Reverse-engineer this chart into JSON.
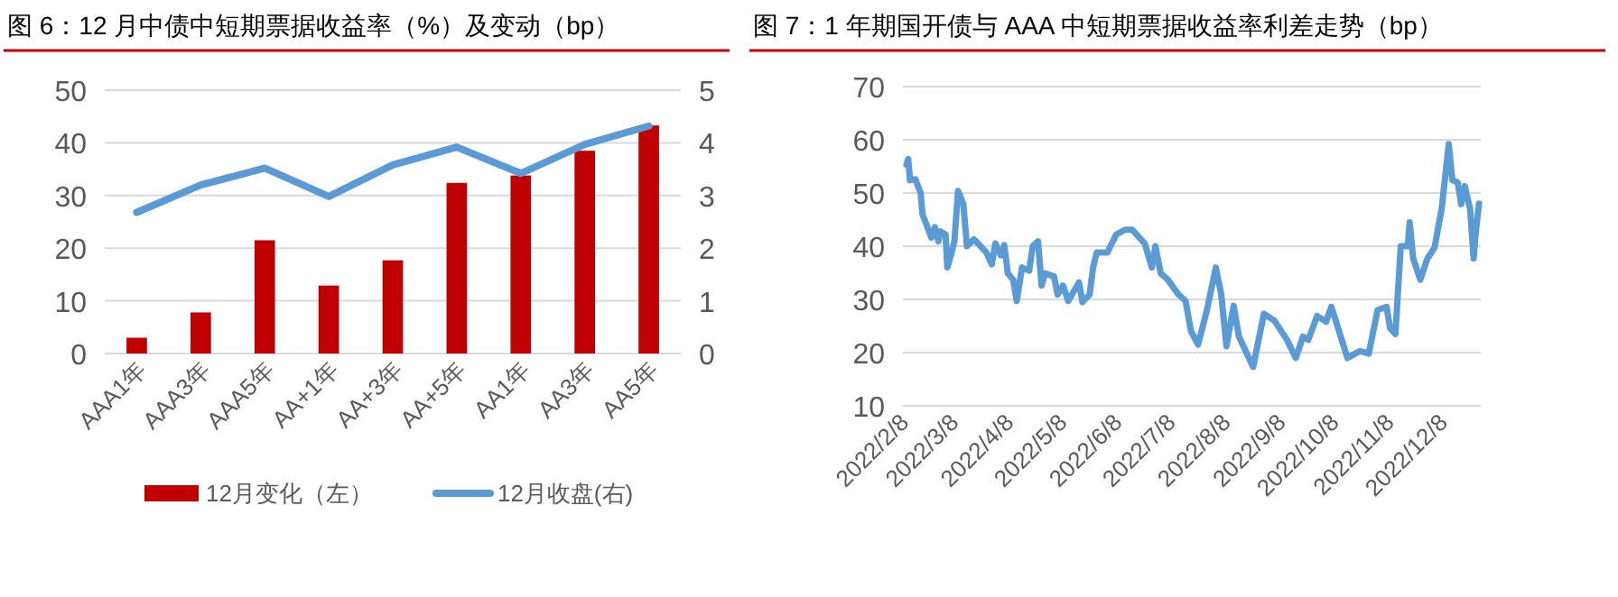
{
  "chart_data": [
    {
      "type": "bar",
      "title": "图 6：12 月中债中短期票据收益率（%）及变动（bp）",
      "categories": [
        "AAA1年",
        "AAA3年",
        "AAA5年",
        "AA+1年",
        "AA+3年",
        "AA+5年",
        "AA1年",
        "AA3年",
        "AA5年"
      ],
      "series": [
        {
          "name": "12月变化（左）",
          "color": "#c00000",
          "values": [
            3,
            7.8,
            21.5,
            12.9,
            17.7,
            32.4,
            33.8,
            38.5,
            43.3
          ]
        },
        {
          "name": "12月收盘(右)",
          "type": "line",
          "axis": "y2",
          "color": "#5b9bd5",
          "values": [
            2.68,
            3.2,
            3.52,
            2.98,
            3.58,
            3.92,
            3.42,
            3.97,
            4.32
          ]
        }
      ],
      "ylim": [
        0,
        50
      ],
      "yticks": [
        0,
        10,
        20,
        30,
        40,
        50
      ],
      "y2lim": [
        0,
        5
      ],
      "y2ticks": [
        0,
        1,
        2,
        3,
        4,
        5
      ],
      "grid": "y",
      "legend": "bottom"
    },
    {
      "type": "line",
      "title": "图 7：1 年期国开债与 AAA 中短期票据收益率利差走势（bp）",
      "x": [
        "2022-02-10",
        "2022-02-11",
        "2022-02-12",
        "2022-02-15",
        "2022-02-18",
        "2022-02-19",
        "2022-02-22",
        "2022-02-24",
        "2022-02-26",
        "2022-02-28",
        "2022-03-01",
        "2022-03-04",
        "2022-03-05",
        "2022-03-07",
        "2022-03-09",
        "2022-03-11",
        "2022-03-14",
        "2022-03-16",
        "2022-03-20",
        "2022-03-27",
        "2022-03-30",
        "2022-04-01",
        "2022-04-04",
        "2022-04-06",
        "2022-04-08",
        "2022-04-11",
        "2022-04-13",
        "2022-04-16",
        "2022-04-20",
        "2022-04-22",
        "2022-04-25",
        "2022-04-27",
        "2022-04-29",
        "2022-05-04",
        "2022-05-06",
        "2022-05-09",
        "2022-05-12",
        "2022-05-18",
        "2022-05-20",
        "2022-05-24",
        "2022-05-26",
        "2022-05-28",
        "2022-06-03",
        "2022-06-08",
        "2022-06-13",
        "2022-06-17",
        "2022-06-24",
        "2022-06-28",
        "2022-06-30",
        "2022-07-03",
        "2022-07-07",
        "2022-07-13",
        "2022-07-17",
        "2022-07-20",
        "2022-07-24",
        "2022-07-29",
        "2022-08-03",
        "2022-08-06",
        "2022-08-09",
        "2022-08-13",
        "2022-08-16",
        "2022-08-24",
        "2022-08-30",
        "2022-09-05",
        "2022-09-12",
        "2022-09-17",
        "2022-09-21",
        "2022-09-24",
        "2022-09-29",
        "2022-10-04",
        "2022-10-07",
        "2022-10-16",
        "2022-10-23",
        "2022-10-28",
        "2022-11-02",
        "2022-11-07",
        "2022-11-09",
        "2022-11-12",
        "2022-11-15",
        "2022-11-19",
        "2022-11-20",
        "2022-11-22",
        "2022-11-26",
        "2022-11-30",
        "2022-12-04",
        "2022-12-06",
        "2022-12-08",
        "2022-12-12",
        "2022-12-14",
        "2022-12-17",
        "2022-12-19",
        "2022-12-21",
        "2022-12-24",
        "2022-12-26",
        "2022-12-27",
        "2022-12-29"
      ],
      "series": [
        {
          "color": "#5b9bd5",
          "values": [
            55.3,
            56.4,
            52.4,
            52.6,
            50,
            46,
            43.4,
            41.6,
            43.6,
            40.9,
            42.8,
            42.2,
            36,
            38.3,
            41,
            50.4,
            47.9,
            40,
            41.3,
            38.8,
            36.6,
            40.5,
            38.3,
            40.2,
            34.9,
            33.7,
            29.7,
            36,
            35.4,
            40,
            40.9,
            32.6,
            34.9,
            34.3,
            30.9,
            32.6,
            29.7,
            33.2,
            29.5,
            30.9,
            36,
            38.8,
            38.8,
            42.2,
            43.1,
            43.1,
            40.5,
            36,
            40,
            34.9,
            33.7,
            30.9,
            29.7,
            24.1,
            21.5,
            28,
            36,
            31,
            21.2,
            28.8,
            23,
            17.3,
            27.3,
            26,
            22.4,
            19,
            23,
            22.4,
            26.9,
            25.8,
            28.6,
            19,
            20.3,
            19.8,
            28,
            28.6,
            24.6,
            23.5,
            40,
            40,
            44.5,
            37.7,
            33.7,
            37.7,
            39.7,
            43.4,
            47,
            59.2,
            52.4,
            52,
            47.9,
            51.3,
            47,
            37.7,
            42,
            48
          ]
        }
      ],
      "xlim": [
        "2022-02-08",
        "2022-12-30"
      ],
      "xticks": [
        {
          "value": "2022-02-08",
          "label": "2022/2/8"
        },
        {
          "value": "2022-03-08",
          "label": "2022/3/8"
        },
        {
          "value": "2022-04-08",
          "label": "2022/4/8"
        },
        {
          "value": "2022-05-08",
          "label": "2022/5/8"
        },
        {
          "value": "2022-06-08",
          "label": "2022/6/8"
        },
        {
          "value": "2022-07-08",
          "label": "2022/7/8"
        },
        {
          "value": "2022-08-08",
          "label": "2022/8/8"
        },
        {
          "value": "2022-09-08",
          "label": "2022/9/8"
        },
        {
          "value": "2022-10-08",
          "label": "2022/10/8"
        },
        {
          "value": "2022-11-08",
          "label": "2022/11/8"
        },
        {
          "value": "2022-12-08",
          "label": "2022/12/8"
        }
      ],
      "ylim": [
        10,
        70
      ],
      "yticks": [
        10,
        20,
        30,
        40,
        50,
        60,
        70
      ],
      "grid": "y"
    }
  ]
}
